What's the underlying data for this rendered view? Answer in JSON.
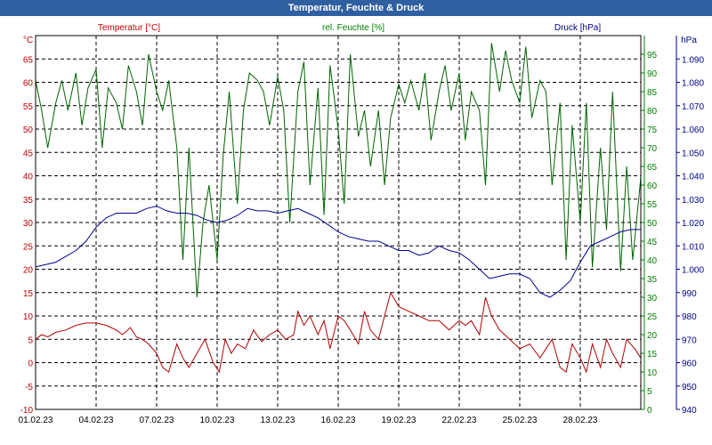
{
  "window": {
    "title": "Temperatur, Feuchte & Druck"
  },
  "chart_data": {
    "type": "line",
    "title": "Temperatur, Feuchte & Druck",
    "x_labels": [
      "01.02.23",
      "04.02.23",
      "07.02.23",
      "10.02.23",
      "13.02.23",
      "16.02.23",
      "19.02.23",
      "22.02.23",
      "25.02.23",
      "28.02.23"
    ],
    "x_range_days": [
      0,
      30
    ],
    "axes": {
      "temperature": {
        "unit_label": "°C",
        "legend": "Temperatur [°C]",
        "range": [
          -10,
          70
        ],
        "ticks": [
          -10,
          -5,
          0,
          5,
          10,
          15,
          20,
          25,
          30,
          35,
          40,
          45,
          50,
          55,
          60,
          65
        ],
        "color": "#c00000"
      },
      "humidity": {
        "unit_label": "%",
        "legend": "rel. Feuchte [%]",
        "range": [
          0,
          100
        ],
        "ticks": [
          0,
          5,
          10,
          15,
          20,
          25,
          30,
          35,
          40,
          45,
          50,
          55,
          60,
          65,
          70,
          75,
          80,
          85,
          90,
          95
        ],
        "color": "#008000"
      },
      "pressure": {
        "unit_label": "hPa",
        "legend": "Druck [hPa]",
        "range": [
          940,
          1100
        ],
        "ticks": [
          "940",
          "950",
          "960",
          "970",
          "980",
          "990",
          "1.000",
          "1.010",
          "1.020",
          "1.030",
          "1.040",
          "1.050",
          "1.060",
          "1.070",
          "1.080",
          "1.090"
        ],
        "color": "#00008b"
      }
    },
    "series": [
      {
        "name": "Temperatur [°C]",
        "axis": "temperature",
        "color": "#b00000",
        "x": [
          0,
          0.3,
          0.6,
          1,
          1.5,
          2,
          2.5,
          3,
          3.5,
          4,
          4.3,
          4.7,
          5,
          5.3,
          5.6,
          6,
          6.3,
          6.6,
          7,
          7.3,
          7.6,
          8,
          8.4,
          8.8,
          9.1,
          9.4,
          9.7,
          10,
          10.4,
          10.8,
          11.2,
          11.6,
          12,
          12.4,
          12.8,
          13,
          13.3,
          13.6,
          14,
          14.3,
          14.6,
          15,
          15.3,
          15.6,
          16,
          16.3,
          16.6,
          17,
          17.3,
          17.6,
          18,
          18.5,
          19,
          19.5,
          20,
          20.5,
          21,
          21.3,
          21.6,
          22,
          22.3,
          22.6,
          23,
          23.5,
          24,
          24.5,
          25,
          25.3,
          25.6,
          26,
          26.3,
          26.6,
          27,
          27.3,
          27.6,
          28,
          28.3,
          28.6,
          29,
          29.3,
          29.7,
          30
        ],
        "values": [
          5,
          6,
          5.5,
          6.5,
          7,
          8,
          8.5,
          8.5,
          8,
          7,
          6,
          7.5,
          5.5,
          5,
          4,
          2,
          -1,
          -2,
          4,
          1,
          -1,
          2,
          5,
          0,
          -2,
          5,
          2,
          4,
          3,
          7,
          4.5,
          6,
          7,
          5,
          6,
          11,
          8,
          10,
          6,
          9,
          3,
          10,
          9,
          7,
          4,
          11,
          7,
          5,
          10,
          15,
          12,
          11,
          10,
          9,
          9,
          7,
          9,
          8,
          9,
          6,
          14,
          10,
          7,
          5,
          3,
          4,
          1,
          3,
          5,
          -1,
          -2,
          4,
          1,
          -2,
          4,
          -1,
          5,
          2,
          -1,
          5,
          3,
          1
        ]
      },
      {
        "name": "rel. Feuchte [%]",
        "axis": "humidity",
        "color": "#006400",
        "x": [
          0,
          0.3,
          0.6,
          1,
          1.3,
          1.6,
          2,
          2.3,
          2.6,
          3,
          3.3,
          3.6,
          4,
          4.3,
          4.6,
          5,
          5.3,
          5.6,
          6,
          6.3,
          6.6,
          7,
          7.3,
          7.6,
          8,
          8.3,
          8.6,
          9,
          9.3,
          9.6,
          10,
          10.3,
          10.6,
          11,
          11.3,
          11.6,
          12,
          12.3,
          12.6,
          13,
          13.3,
          13.6,
          14,
          14.3,
          14.6,
          15,
          15.3,
          15.6,
          16,
          16.3,
          16.6,
          17,
          17.3,
          17.6,
          18,
          18.3,
          18.6,
          19,
          19.3,
          19.6,
          20,
          20.3,
          20.6,
          21,
          21.3,
          21.6,
          22,
          22.3,
          22.6,
          23,
          23.3,
          23.6,
          24,
          24.3,
          24.6,
          25,
          25.3,
          25.6,
          26,
          26.3,
          26.6,
          27,
          27.3,
          27.6,
          28,
          28.3,
          28.6,
          29,
          29.3,
          29.6,
          30
        ],
        "values": [
          88,
          80,
          70,
          82,
          88,
          80,
          90,
          76,
          86,
          91,
          70,
          86,
          82,
          75,
          92,
          85,
          76,
          95,
          85,
          80,
          88,
          70,
          40,
          70,
          30,
          50,
          60,
          40,
          68,
          85,
          55,
          80,
          90,
          88,
          85,
          76,
          89,
          80,
          50,
          85,
          93,
          60,
          86,
          52,
          92,
          75,
          55,
          95,
          73,
          80,
          65,
          80,
          60,
          78,
          87,
          82,
          88,
          80,
          90,
          72,
          85,
          92,
          80,
          90,
          72,
          85,
          80,
          60,
          98,
          85,
          96,
          88,
          82,
          97,
          78,
          88,
          85,
          60,
          82,
          40,
          76,
          50,
          82,
          38,
          70,
          48,
          85,
          37,
          65,
          40,
          62
        ]
      },
      {
        "name": "Druck [hPa]",
        "axis": "pressure",
        "color": "#00008b",
        "x": [
          0,
          1,
          2,
          2.5,
          3,
          3.5,
          4,
          5,
          5.5,
          6,
          6.5,
          7,
          7.5,
          8,
          8.5,
          9,
          9.5,
          10,
          10.5,
          11,
          11.5,
          12,
          12.5,
          13,
          13.5,
          14,
          14.5,
          15,
          15.5,
          16,
          16.5,
          17,
          17.5,
          18,
          18.5,
          19,
          19.5,
          20,
          20.5,
          21,
          21.5,
          22,
          22.5,
          23,
          23.5,
          24,
          24.5,
          25,
          25.5,
          26,
          26.5,
          27,
          27.5,
          28,
          28.5,
          29,
          29.5,
          30
        ],
        "values": [
          1001,
          1003,
          1008,
          1012,
          1018,
          1022,
          1024,
          1024,
          1026,
          1027,
          1025,
          1024,
          1024,
          1023,
          1021,
          1020,
          1021,
          1023,
          1026,
          1025,
          1025,
          1024,
          1025,
          1026,
          1024,
          1022,
          1019,
          1016,
          1014,
          1013,
          1012,
          1012,
          1010,
          1008,
          1008,
          1006,
          1007,
          1010,
          1008,
          1007,
          1004,
          1000,
          996,
          997,
          998,
          998,
          996,
          990,
          988,
          991,
          995,
          1003,
          1010,
          1012,
          1014,
          1016,
          1017,
          1017
        ]
      }
    ]
  }
}
